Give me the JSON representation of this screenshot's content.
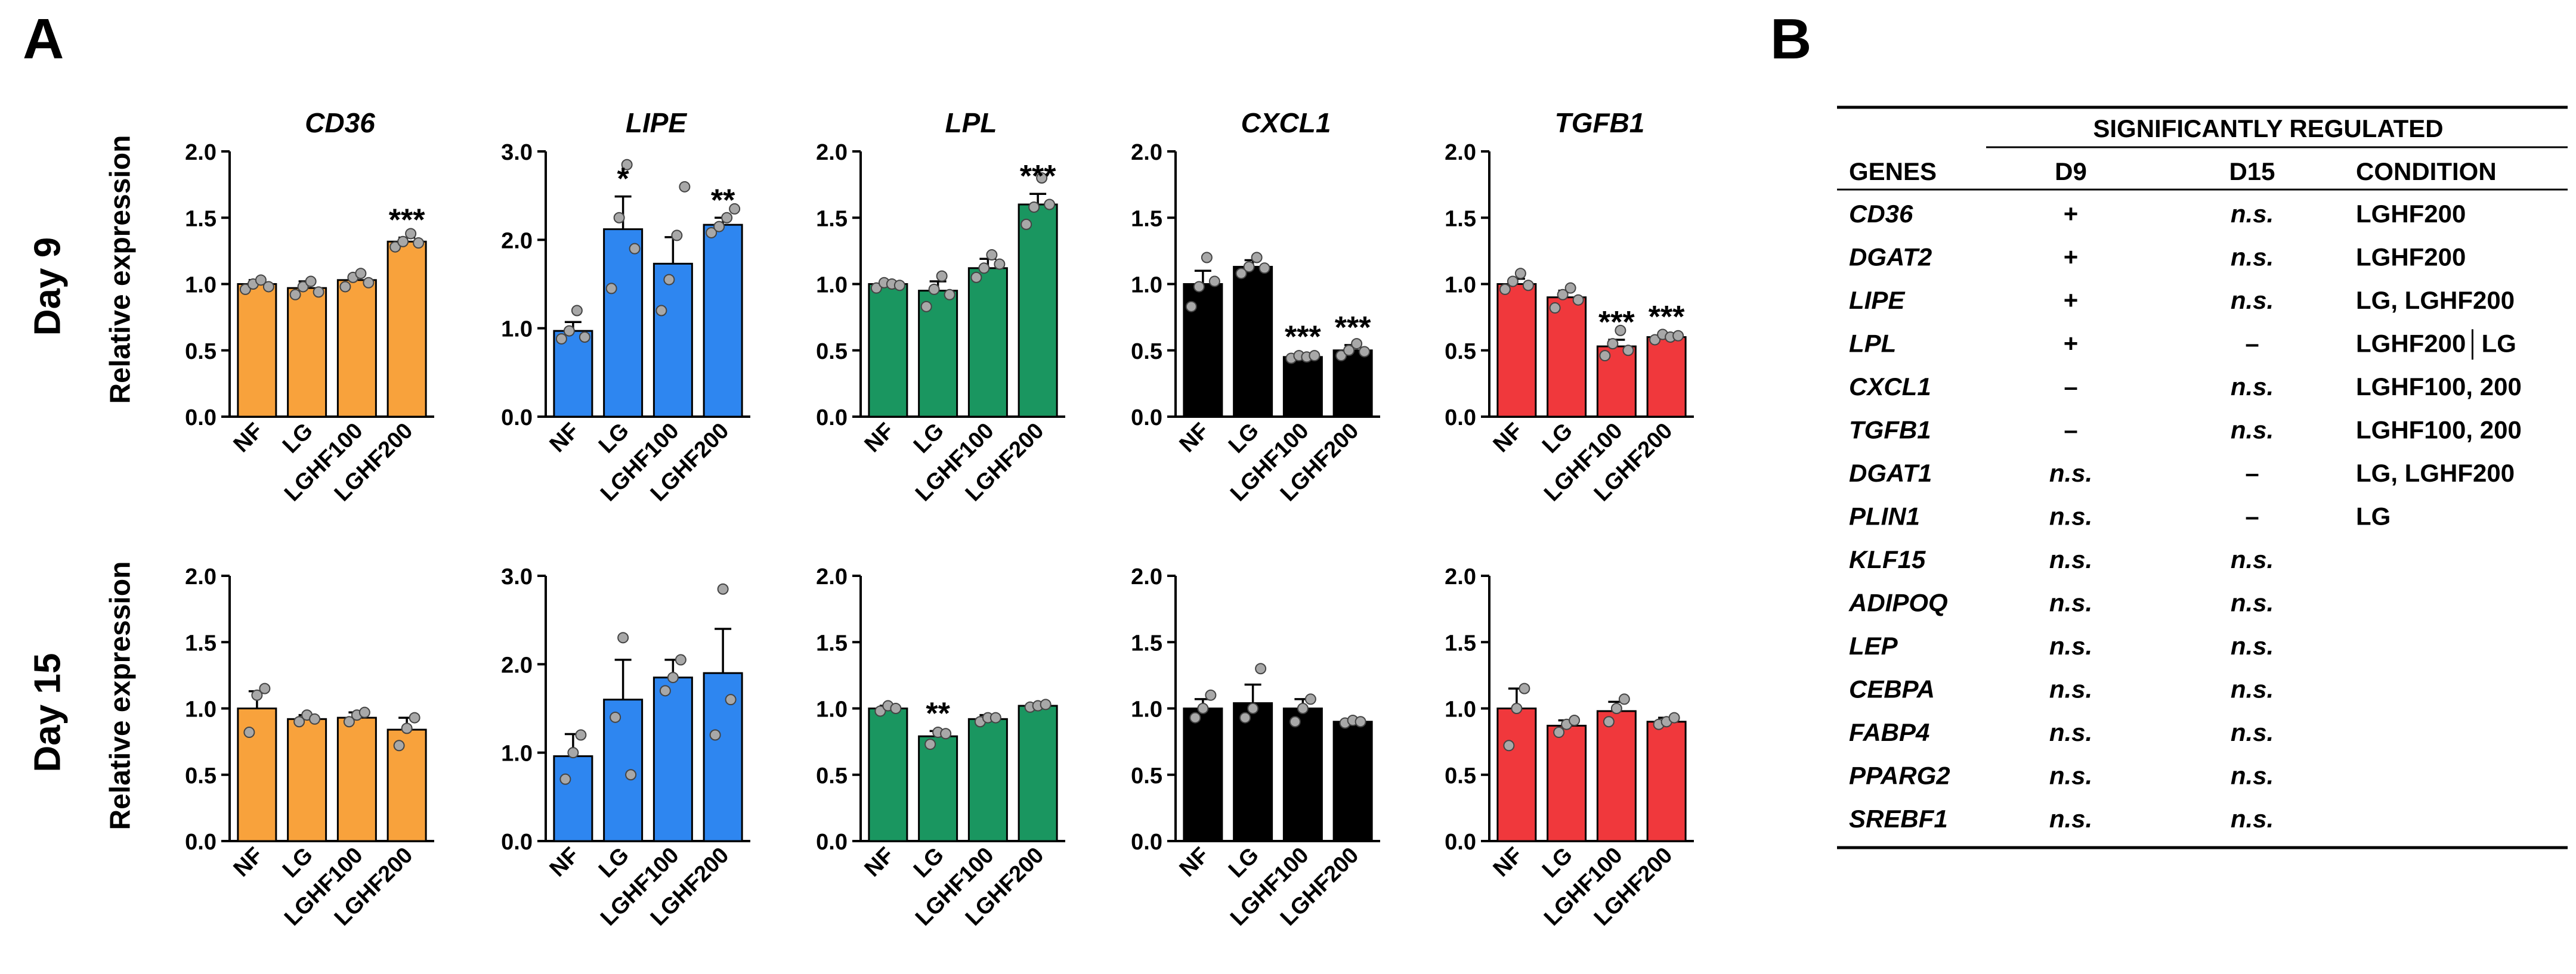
{
  "figure": {
    "panel_a_label": "A",
    "panel_b_label": "B",
    "row_labels": [
      "Day 9",
      "Day 15"
    ],
    "ylabel": "Relative expression"
  },
  "colors": {
    "CD36": "#F8A23C",
    "LIPE": "#2E86F0",
    "LPL": "#1A9660",
    "CXCL1": "#000000",
    "TGFB1": "#F0383C",
    "dot": "#A8A8A8"
  },
  "chart_data": [
    {
      "type": "bar",
      "row": "Day 9",
      "title": "CD36",
      "categories": [
        "NF",
        "LG",
        "LGHF100",
        "LGHF200"
      ],
      "values": [
        1.0,
        0.97,
        1.03,
        1.32
      ],
      "errors": [
        0.03,
        0.05,
        0.04,
        0.03
      ],
      "points": [
        [
          0.96,
          1.0,
          1.03,
          0.98
        ],
        [
          0.92,
          0.98,
          1.02,
          0.94
        ],
        [
          0.98,
          1.05,
          1.08,
          1.01
        ],
        [
          1.28,
          1.32,
          1.38,
          1.31
        ]
      ],
      "stars": [
        "",
        "",
        "",
        "***"
      ],
      "ylim": [
        0,
        2.0
      ],
      "yticks": [
        0.0,
        0.5,
        1.0,
        1.5,
        2.0
      ],
      "ylabel": "Relative expression",
      "color_key": "CD36"
    },
    {
      "type": "bar",
      "row": "Day 9",
      "title": "LIPE",
      "categories": [
        "NF",
        "LG",
        "LGHF100",
        "LGHF200"
      ],
      "values": [
        0.97,
        2.12,
        1.73,
        2.17
      ],
      "errors": [
        0.1,
        0.37,
        0.3,
        0.08
      ],
      "points": [
        [
          0.88,
          0.97,
          1.2,
          0.9
        ],
        [
          1.45,
          2.25,
          2.85,
          1.9
        ],
        [
          1.2,
          1.55,
          2.05,
          2.6
        ],
        [
          2.08,
          2.15,
          2.25,
          2.35
        ]
      ],
      "stars": [
        "",
        "*",
        "",
        "**"
      ],
      "ylim": [
        0,
        3.0
      ],
      "yticks": [
        0.0,
        1.0,
        2.0,
        3.0
      ],
      "ylabel": "",
      "color_key": "LIPE"
    },
    {
      "type": "bar",
      "row": "Day 9",
      "title": "LPL",
      "categories": [
        "NF",
        "LG",
        "LGHF100",
        "LGHF200"
      ],
      "values": [
        1.0,
        0.95,
        1.12,
        1.6
      ],
      "errors": [
        0.02,
        0.07,
        0.07,
        0.08
      ],
      "points": [
        [
          0.97,
          1.01,
          1.0,
          0.99
        ],
        [
          0.83,
          0.96,
          1.06,
          0.92
        ],
        [
          1.05,
          1.12,
          1.22,
          1.15
        ],
        [
          1.45,
          1.58,
          1.8,
          1.6
        ]
      ],
      "stars": [
        "",
        "",
        "",
        "***"
      ],
      "ylim": [
        0,
        2.0
      ],
      "yticks": [
        0.0,
        0.5,
        1.0,
        1.5,
        2.0
      ],
      "ylabel": "",
      "color_key": "LPL"
    },
    {
      "type": "bar",
      "row": "Day 9",
      "title": "CXCL1",
      "categories": [
        "NF",
        "LG",
        "LGHF100",
        "LGHF200"
      ],
      "values": [
        1.0,
        1.13,
        0.45,
        0.5
      ],
      "errors": [
        0.1,
        0.05,
        0.02,
        0.04
      ],
      "points": [
        [
          0.83,
          0.98,
          1.2,
          1.02
        ],
        [
          1.08,
          1.13,
          1.2,
          1.12
        ],
        [
          0.44,
          0.46,
          0.45,
          0.46
        ],
        [
          0.46,
          0.5,
          0.55,
          0.49
        ]
      ],
      "stars": [
        "",
        "",
        "***",
        "***"
      ],
      "ylim": [
        0,
        2.0
      ],
      "yticks": [
        0.0,
        0.5,
        1.0,
        1.5,
        2.0
      ],
      "ylabel": "",
      "color_key": "CXCL1"
    },
    {
      "type": "bar",
      "row": "Day 9",
      "title": "TGFB1",
      "categories": [
        "NF",
        "LG",
        "LGHF100",
        "LGHF200"
      ],
      "values": [
        1.0,
        0.9,
        0.53,
        0.6
      ],
      "errors": [
        0.04,
        0.05,
        0.05,
        0.02
      ],
      "points": [
        [
          0.96,
          1.02,
          1.08,
          0.99
        ],
        [
          0.82,
          0.92,
          0.97,
          0.88
        ],
        [
          0.46,
          0.55,
          0.65,
          0.5
        ],
        [
          0.58,
          0.62,
          0.6,
          0.61
        ]
      ],
      "stars": [
        "",
        "",
        "***",
        "***"
      ],
      "ylim": [
        0,
        2.0
      ],
      "yticks": [
        0.0,
        0.5,
        1.0,
        1.5,
        2.0
      ],
      "ylabel": "",
      "color_key": "TGFB1"
    },
    {
      "type": "bar",
      "row": "Day 15",
      "title": "",
      "categories": [
        "NF",
        "LG",
        "LGHF100",
        "LGHF200"
      ],
      "values": [
        1.0,
        0.92,
        0.93,
        0.84
      ],
      "errors": [
        0.13,
        0.03,
        0.04,
        0.09
      ],
      "points": [
        [
          0.82,
          1.1,
          1.15
        ],
        [
          0.9,
          0.95,
          0.92
        ],
        [
          0.9,
          0.95,
          0.97
        ],
        [
          0.72,
          0.85,
          0.93
        ]
      ],
      "stars": [
        "",
        "",
        "",
        ""
      ],
      "ylim": [
        0,
        2.0
      ],
      "yticks": [
        0.0,
        0.5,
        1.0,
        1.5,
        2.0
      ],
      "ylabel": "Relative expression",
      "color_key": "CD36"
    },
    {
      "type": "bar",
      "row": "Day 15",
      "title": "",
      "categories": [
        "NF",
        "LG",
        "LGHF100",
        "LGHF200"
      ],
      "values": [
        0.96,
        1.6,
        1.85,
        1.9
      ],
      "errors": [
        0.25,
        0.45,
        0.2,
        0.5
      ],
      "points": [
        [
          0.7,
          1.0,
          1.2
        ],
        [
          1.4,
          2.3,
          0.75
        ],
        [
          1.7,
          1.85,
          2.05
        ],
        [
          1.2,
          2.85,
          1.6
        ]
      ],
      "stars": [
        "",
        "",
        "",
        ""
      ],
      "ylim": [
        0,
        3.0
      ],
      "yticks": [
        0.0,
        1.0,
        2.0,
        3.0
      ],
      "ylabel": "",
      "color_key": "LIPE"
    },
    {
      "type": "bar",
      "row": "Day 15",
      "title": "",
      "categories": [
        "NF",
        "LG",
        "LGHF100",
        "LGHF200"
      ],
      "values": [
        1.0,
        0.79,
        0.92,
        1.02
      ],
      "errors": [
        0.02,
        0.04,
        0.03,
        0.01
      ],
      "points": [
        [
          0.98,
          1.02,
          1.0
        ],
        [
          0.73,
          0.82,
          0.81
        ],
        [
          0.9,
          0.93,
          0.93
        ],
        [
          1.01,
          1.02,
          1.03
        ]
      ],
      "stars": [
        "",
        "**",
        "",
        ""
      ],
      "ylim": [
        0,
        2.0
      ],
      "yticks": [
        0.0,
        0.5,
        1.0,
        1.5,
        2.0
      ],
      "ylabel": "",
      "color_key": "LPL"
    },
    {
      "type": "bar",
      "row": "Day 15",
      "title": "",
      "categories": [
        "NF",
        "LG",
        "LGHF100",
        "LGHF200"
      ],
      "values": [
        1.0,
        1.04,
        1.0,
        0.9
      ],
      "errors": [
        0.07,
        0.14,
        0.07,
        0.01
      ],
      "points": [
        [
          0.93,
          1.0,
          1.1
        ],
        [
          0.93,
          1.0,
          1.3
        ],
        [
          0.9,
          1.0,
          1.07
        ],
        [
          0.89,
          0.91,
          0.9
        ]
      ],
      "stars": [
        "",
        "",
        "",
        ""
      ],
      "ylim": [
        0,
        2.0
      ],
      "yticks": [
        0.0,
        0.5,
        1.0,
        1.5,
        2.0
      ],
      "ylabel": "",
      "color_key": "CXCL1"
    },
    {
      "type": "bar",
      "row": "Day 15",
      "title": "",
      "categories": [
        "NF",
        "LG",
        "LGHF100",
        "LGHF200"
      ],
      "values": [
        1.0,
        0.87,
        0.98,
        0.9
      ],
      "errors": [
        0.15,
        0.04,
        0.07,
        0.03
      ],
      "points": [
        [
          0.72,
          1.0,
          1.15
        ],
        [
          0.82,
          0.88,
          0.91
        ],
        [
          0.9,
          1.0,
          1.07
        ],
        [
          0.88,
          0.9,
          0.93
        ]
      ],
      "stars": [
        "",
        "",
        "",
        ""
      ],
      "ylim": [
        0,
        2.0
      ],
      "yticks": [
        0.0,
        0.5,
        1.0,
        1.5,
        2.0
      ],
      "ylabel": "",
      "color_key": "TGFB1"
    }
  ],
  "table": {
    "header_span": "SIGNIFICANTLY REGULATED",
    "columns": [
      "GENES",
      "D9",
      "D15",
      "CONDITION"
    ],
    "rows": [
      {
        "gene": "CD36",
        "d9": "+",
        "d15": "n.s.",
        "condition": "LGHF200"
      },
      {
        "gene": "DGAT2",
        "d9": "+",
        "d15": "n.s.",
        "condition": "LGHF200"
      },
      {
        "gene": "LIPE",
        "d9": "+",
        "d15": "n.s.",
        "condition": "LG, LGHF200"
      },
      {
        "gene": "LPL",
        "d9": "+",
        "d15": "–",
        "condition": "LGHF200│LG"
      },
      {
        "gene": "CXCL1",
        "d9": "–",
        "d15": "n.s.",
        "condition": "LGHF100, 200"
      },
      {
        "gene": "TGFB1",
        "d9": "–",
        "d15": "n.s.",
        "condition": "LGHF100, 200"
      },
      {
        "gene": "DGAT1",
        "d9": "n.s.",
        "d15": "–",
        "condition": "LG, LGHF200"
      },
      {
        "gene": "PLIN1",
        "d9": "n.s.",
        "d15": "–",
        "condition": "LG"
      },
      {
        "gene": "KLF15",
        "d9": "n.s.",
        "d15": "n.s.",
        "condition": ""
      },
      {
        "gene": "ADIPOQ",
        "d9": "n.s.",
        "d15": "n.s.",
        "condition": ""
      },
      {
        "gene": "LEP",
        "d9": "n.s.",
        "d15": "n.s.",
        "condition": ""
      },
      {
        "gene": "CEBPA",
        "d9": "n.s.",
        "d15": "n.s.",
        "condition": ""
      },
      {
        "gene": "FABP4",
        "d9": "n.s.",
        "d15": "n.s.",
        "condition": ""
      },
      {
        "gene": "PPARG2",
        "d9": "n.s.",
        "d15": "n.s.",
        "condition": ""
      },
      {
        "gene": "SREBF1",
        "d9": "n.s.",
        "d15": "n.s.",
        "condition": ""
      }
    ]
  }
}
